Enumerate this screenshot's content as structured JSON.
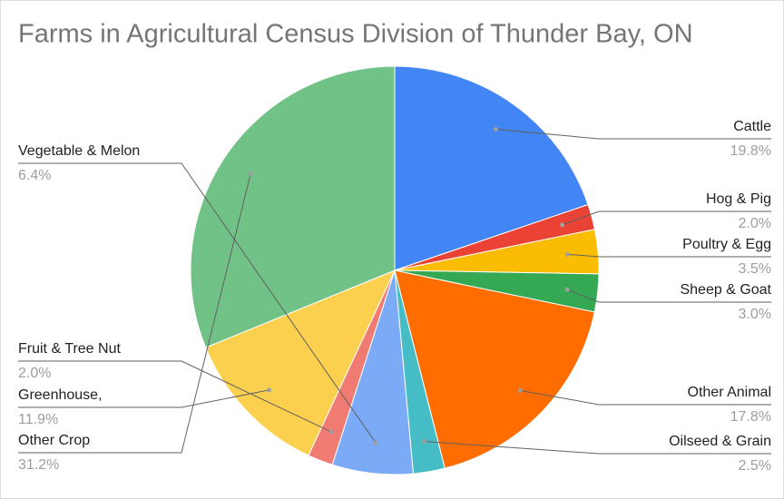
{
  "chart_data": {
    "type": "pie",
    "title": "Farms in Agricultural Census Division of Thunder Bay, ON",
    "categories": [
      "Cattle",
      "Hog & Pig",
      "Poultry & Egg",
      "Sheep & Goat",
      "Other Animal",
      "Oilseed & Grain",
      "Vegetable & Melon",
      "Fruit & Tree Nut",
      "Greenhouse,",
      "Other Crop"
    ],
    "values": [
      19.8,
      2.0,
      3.5,
      3.0,
      17.8,
      2.5,
      6.4,
      2.0,
      11.9,
      31.2
    ],
    "value_labels": [
      "19.8%",
      "2.0%",
      "3.5%",
      "3.0%",
      "17.8%",
      "2.5%",
      "6.4%",
      "2.0%",
      "11.9%",
      "31.2%"
    ],
    "colors": [
      "#4285f4",
      "#ea4335",
      "#fbbc04",
      "#34a853",
      "#ff6d01",
      "#46bdc6",
      "#7baaf7",
      "#f07b72",
      "#fcd04f",
      "#71c287"
    ]
  }
}
